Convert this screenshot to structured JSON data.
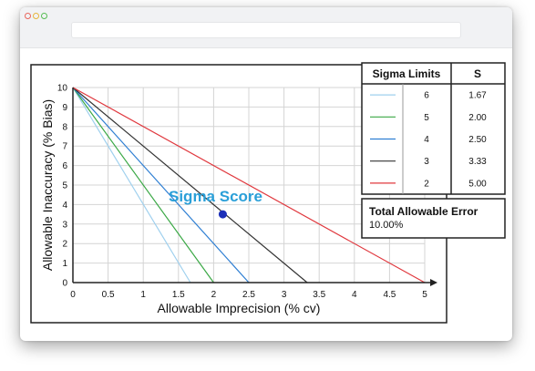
{
  "window": {
    "address": ""
  },
  "chart_data": {
    "type": "line",
    "xlabel": "Allowable Imprecision (% cv)",
    "ylabel": "Allowable Inaccuracy (% Bias)",
    "xlim": [
      0,
      5
    ],
    "ylim": [
      0,
      10
    ],
    "xticks": [
      "0",
      "0.5",
      "1",
      "1.5",
      "2",
      "2.5",
      "3",
      "3.5",
      "4",
      "4.5",
      "5"
    ],
    "yticks": [
      "0",
      "1",
      "2",
      "3",
      "4",
      "5",
      "6",
      "7",
      "8",
      "9",
      "10"
    ],
    "grid": true,
    "series": [
      {
        "sigma": "6",
        "s": "1.67",
        "color": "#9fd0ee",
        "x": [
          0,
          1.67
        ],
        "y": [
          10,
          0
        ]
      },
      {
        "sigma": "5",
        "s": "2.00",
        "color": "#3aa845",
        "x": [
          0,
          2.0
        ],
        "y": [
          10,
          0
        ]
      },
      {
        "sigma": "4",
        "s": "2.50",
        "color": "#2f7fd3",
        "x": [
          0,
          2.5
        ],
        "y": [
          10,
          0
        ]
      },
      {
        "sigma": "3",
        "s": "3.33",
        "color": "#333333",
        "x": [
          0,
          3.33
        ],
        "y": [
          10,
          0
        ]
      },
      {
        "sigma": "2",
        "s": "5.00",
        "color": "#e0383e",
        "x": [
          0,
          5.0
        ],
        "y": [
          10,
          0
        ]
      }
    ],
    "point": {
      "x": 2.13,
      "y": 3.5,
      "color": "#1c2fb8"
    },
    "annotation": "Sigma Score",
    "table": {
      "header_limits": "Sigma Limits",
      "header_s": "S"
    },
    "total_error": {
      "title": "Total Allowable Error",
      "value": "10.00%"
    }
  }
}
